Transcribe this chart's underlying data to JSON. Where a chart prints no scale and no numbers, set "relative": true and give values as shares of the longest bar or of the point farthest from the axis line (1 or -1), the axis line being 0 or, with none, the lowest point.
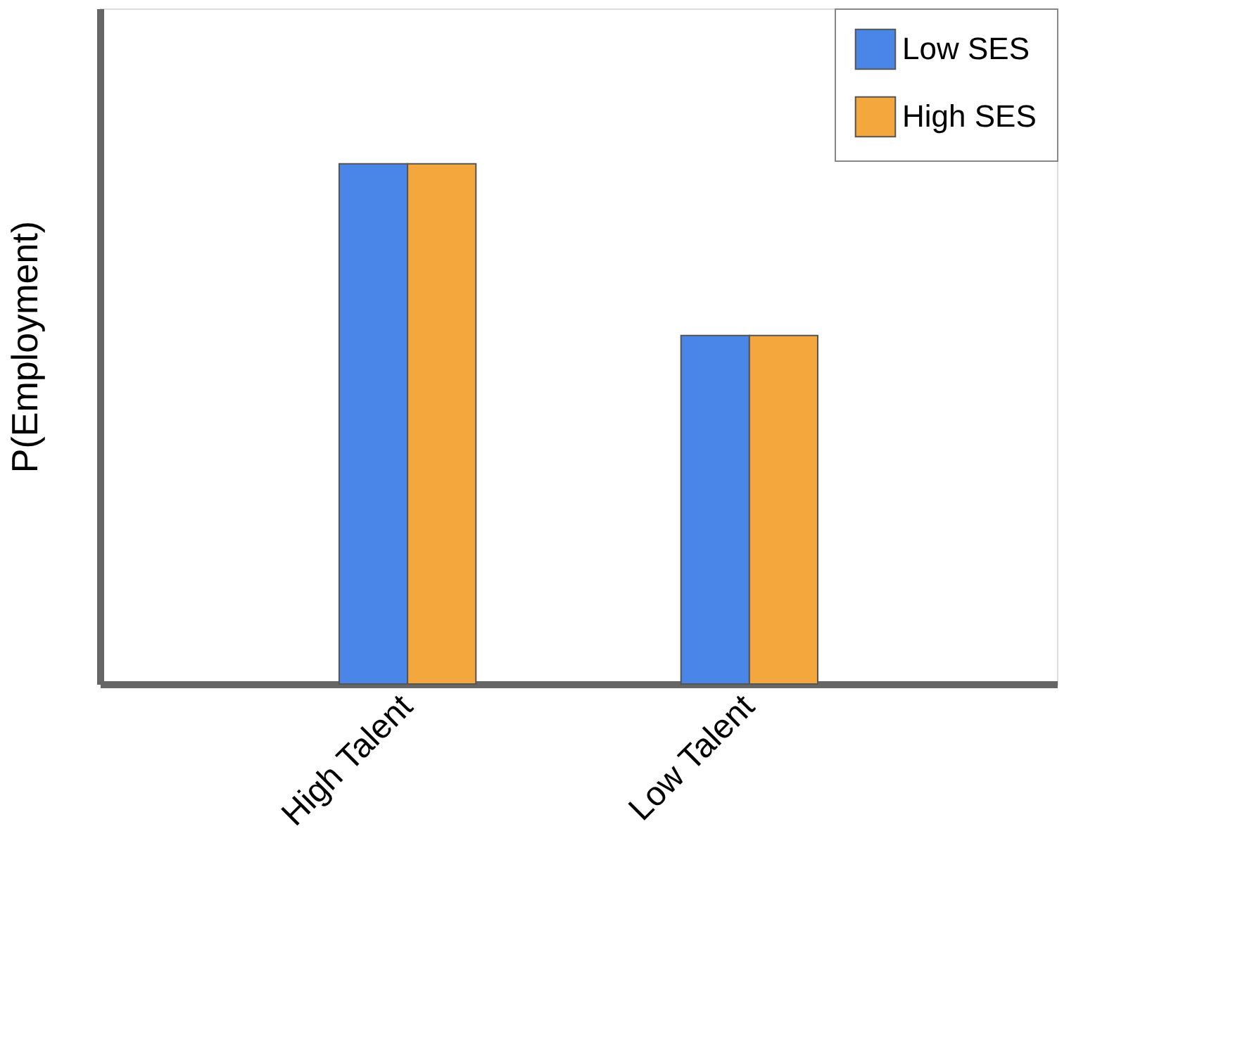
{
  "chart_data": {
    "type": "bar",
    "relative": true,
    "ylabel": "P(Employment)",
    "categories": [
      "High Talent",
      "Low Talent"
    ],
    "series": [
      {
        "name": "Low SES",
        "color": "#4a86e8",
        "values": [
          1,
          0.67
        ]
      },
      {
        "name": "High SES",
        "color": "#f4a73c",
        "values": [
          1,
          0.67
        ]
      }
    ],
    "legend": "top right",
    "grid": false
  }
}
